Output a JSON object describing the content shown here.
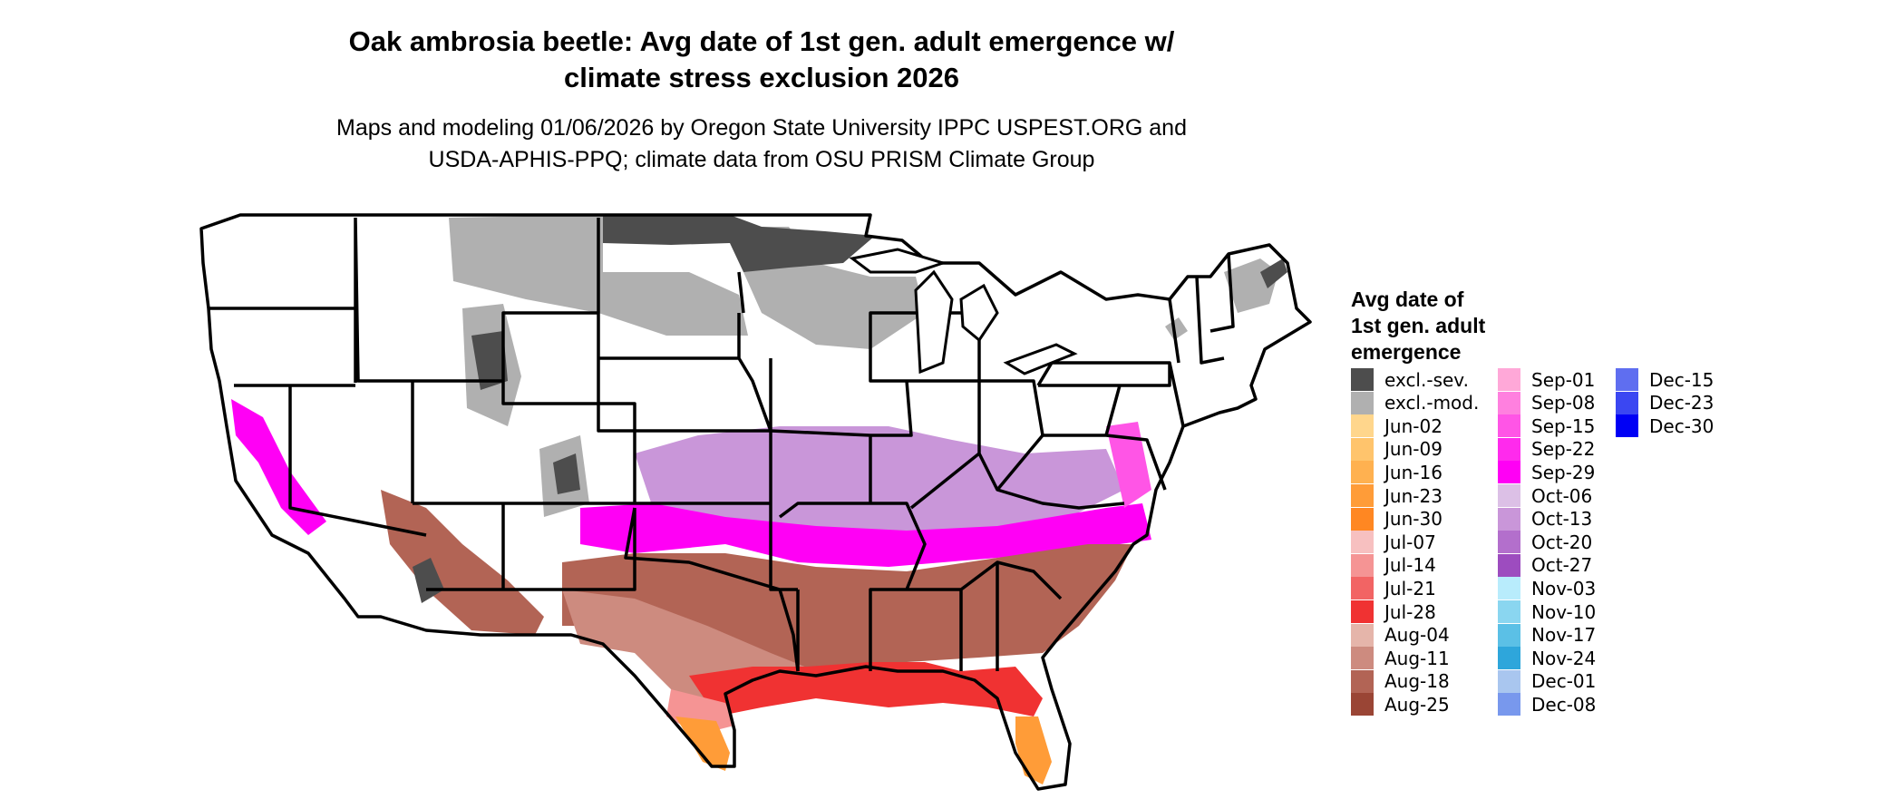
{
  "title_lines": [
    "Oak ambrosia beetle: Avg date of 1st gen. adult emergence w/",
    "climate stress exclusion 2026"
  ],
  "subtitle_lines": [
    "Maps and modeling 01/06/2026 by Oregon State University IPPC USPEST.ORG and",
    "USDA-APHIS-PPQ; climate data from OSU PRISM Climate Group"
  ],
  "legend": {
    "title_lines": [
      "Avg date of",
      "1st gen. adult",
      "emergence"
    ],
    "items": [
      {
        "label": "excl.-sev.",
        "color": "#4d4d4d"
      },
      {
        "label": "excl.-mod.",
        "color": "#b0b0b0"
      },
      {
        "label": "Jun-02",
        "color": "#ffd68c"
      },
      {
        "label": "Jun-09",
        "color": "#ffc46c"
      },
      {
        "label": "Jun-16",
        "color": "#ffb150"
      },
      {
        "label": "Jun-23",
        "color": "#ff9c38"
      },
      {
        "label": "Jun-30",
        "color": "#ff8722"
      },
      {
        "label": "Jul-07",
        "color": "#f7c0c0"
      },
      {
        "label": "Jul-14",
        "color": "#f59494"
      },
      {
        "label": "Jul-21",
        "color": "#f26464"
      },
      {
        "label": "Jul-28",
        "color": "#f03232"
      },
      {
        "label": "Aug-04",
        "color": "#e5b5aa"
      },
      {
        "label": "Aug-11",
        "color": "#cd8b7f"
      },
      {
        "label": "Aug-18",
        "color": "#b26455"
      },
      {
        "label": "Aug-25",
        "color": "#9a4535"
      },
      {
        "label": "Sep-01",
        "color": "#ffa8d8"
      },
      {
        "label": "Sep-08",
        "color": "#ff80df"
      },
      {
        "label": "Sep-15",
        "color": "#ff55e6"
      },
      {
        "label": "Sep-22",
        "color": "#ff2aed"
      },
      {
        "label": "Sep-29",
        "color": "#ff00f5"
      },
      {
        "label": "Oct-06",
        "color": "#dcc0e6"
      },
      {
        "label": "Oct-13",
        "color": "#c996d9"
      },
      {
        "label": "Oct-20",
        "color": "#b36fcc"
      },
      {
        "label": "Oct-27",
        "color": "#9d4cbf"
      },
      {
        "label": "Nov-03",
        "color": "#b8ecfc"
      },
      {
        "label": "Nov-10",
        "color": "#8ad6f0"
      },
      {
        "label": "Nov-17",
        "color": "#5bc0e6"
      },
      {
        "label": "Nov-24",
        "color": "#2ea6db"
      },
      {
        "label": "Dec-01",
        "color": "#a9c6ef"
      },
      {
        "label": "Dec-08",
        "color": "#7898ed"
      },
      {
        "label": "Dec-15",
        "color": "#5f6ef0"
      },
      {
        "label": "Dec-23",
        "color": "#3b47f2"
      },
      {
        "label": "Dec-30",
        "color": "#0000f5"
      }
    ]
  }
}
